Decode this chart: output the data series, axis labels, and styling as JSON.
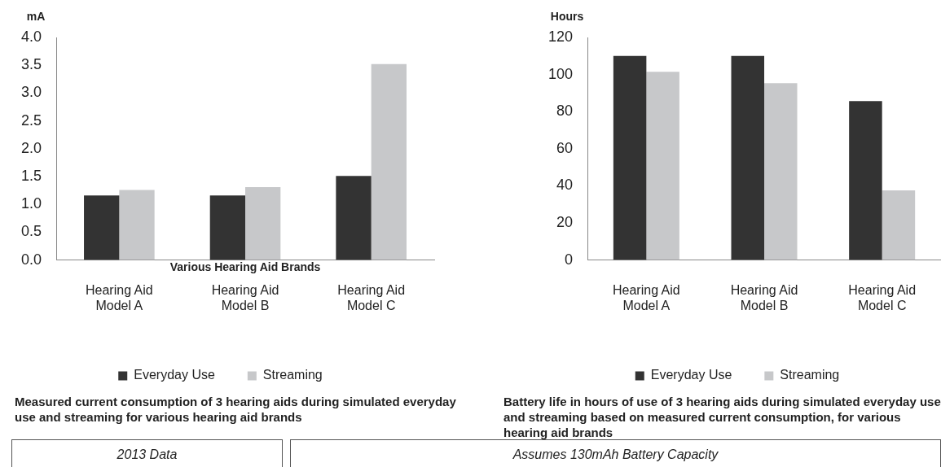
{
  "chart_data": [
    {
      "type": "bar",
      "title": "Measured current consumption of 3 hearing aids during simulated everyday use and streaming for various hearing aid brands",
      "xlabel": "Various Hearing Aid Brands",
      "ylabel": "mA",
      "categories": [
        "Hearing Aid Model A",
        "Hearing Aid Model B",
        "Hearing Aid Model C"
      ],
      "series": [
        {
          "name": "Everyday Use",
          "color": "#333333",
          "values": [
            1.16,
            1.16,
            1.51
          ]
        },
        {
          "name": "Streaming",
          "color": "#c7c8ca",
          "values": [
            1.26,
            1.31,
            3.52
          ]
        }
      ],
      "ylim": [
        0,
        4
      ],
      "yticks": [
        {
          "value": 0,
          "label": "0.0"
        },
        {
          "value": 0.5,
          "label": "0.5"
        },
        {
          "value": 1,
          "label": "1.0"
        },
        {
          "value": 1.5,
          "label": "1.5"
        },
        {
          "value": 2,
          "label": "2.0"
        },
        {
          "value": 2.5,
          "label": "2.5"
        },
        {
          "value": 3,
          "label": "3.0"
        },
        {
          "value": 3.5,
          "label": "3.5"
        },
        {
          "value": 4,
          "label": "4.0"
        }
      ],
      "grid": false,
      "legend": "bottom",
      "annotations": [
        "2013 Data"
      ]
    },
    {
      "type": "bar",
      "title": "Battery life in hours of use of 3 hearing aids during simulated everyday use and streaming based on measured current consumption, for various hearing aid brands",
      "ylabel": "Hours",
      "categories": [
        "Hearing Aid Model A",
        "Hearing Aid Model B",
        "Hearing Aid Model C"
      ],
      "series": [
        {
          "name": "Everyday Use",
          "color": "#333333",
          "values": [
            110,
            110,
            85.7
          ]
        },
        {
          "name": "Streaming",
          "color": "#c7c8ca",
          "values": [
            101.5,
            95.3,
            37.5
          ]
        }
      ],
      "ylim": [
        0,
        120
      ],
      "yticks": [
        0,
        20,
        40,
        60,
        80,
        100,
        120
      ],
      "grid": false,
      "legend": "bottom",
      "annotations": [
        "Assumes 130mAh Battery Capacity"
      ]
    }
  ]
}
